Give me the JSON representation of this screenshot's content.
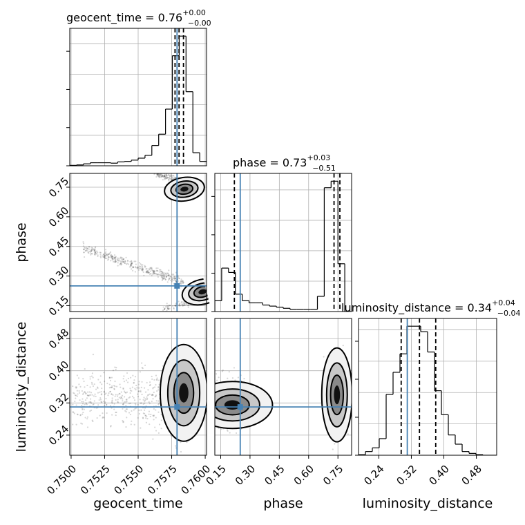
{
  "chart_data": {
    "type": "corner",
    "parameters": [
      "geocent_time",
      "phase",
      "luminosity_distance"
    ],
    "titles": [
      {
        "param": "geocent_time",
        "prefix": "geocent_time = 0.76",
        "plus": "+0.00",
        "minus": "−0.00"
      },
      {
        "param": "phase",
        "prefix": "phase = 0.73",
        "plus": "+0.03",
        "minus": "−0.51"
      },
      {
        "param": "luminosity_distance",
        "prefix": "luminosity_distance = 0.34",
        "plus": "+0.04",
        "minus": "−0.04"
      }
    ],
    "axes": {
      "geocent_time": {
        "range": [
          0.7499,
          0.7601
        ],
        "ticks": [
          0.75,
          0.7525,
          0.755,
          0.7575,
          0.76
        ],
        "tick_labels": [
          "0.7500",
          "0.7525",
          "0.7550",
          "0.7575",
          "0.7600"
        ],
        "label": "geocent_time"
      },
      "phase": {
        "range": [
          0.12,
          0.82
        ],
        "ticks": [
          0.15,
          0.3,
          0.45,
          0.6,
          0.75
        ],
        "tick_labels": [
          "0.15",
          "0.30",
          "0.45",
          "0.60",
          "0.75"
        ],
        "label": "phase"
      },
      "luminosity_distance": {
        "range": [
          0.19,
          0.53
        ],
        "ticks": [
          0.24,
          0.32,
          0.4,
          0.48
        ],
        "tick_labels": [
          "0.24",
          "0.32",
          "0.40",
          "0.48"
        ],
        "label": "luminosity_distance"
      }
    },
    "truth": {
      "geocent_time": 0.7579,
      "phase": 0.25,
      "luminosity_distance": 0.31
    },
    "quantiles": {
      "geocent_time": [
        0.75775,
        0.75805,
        0.75838
      ],
      "phase": [
        0.22,
        0.73,
        0.76
      ],
      "luminosity_distance": [
        0.295,
        0.34,
        0.38
      ]
    },
    "histograms": {
      "geocent_time": {
        "edges": [
          0.7499,
          0.75041,
          0.75092,
          0.75143,
          0.75194,
          0.75245,
          0.75296,
          0.75347,
          0.75398,
          0.75449,
          0.755,
          0.75551,
          0.75602,
          0.75653,
          0.75704,
          0.75755,
          0.75806,
          0.75857,
          0.75908,
          0.75959,
          0.7601
        ],
        "counts": [
          0.2,
          0.4,
          0.9,
          1.4,
          1.4,
          1.4,
          1.2,
          1.8,
          2.0,
          2.6,
          3.5,
          4.8,
          9.3,
          14.5,
          26.0,
          50.5,
          59.5,
          34.0,
          6.0,
          2.0
        ]
      },
      "phase": {
        "edges": [
          0.12,
          0.155,
          0.19,
          0.225,
          0.26,
          0.295,
          0.33,
          0.365,
          0.4,
          0.435,
          0.47,
          0.505,
          0.54,
          0.575,
          0.61,
          0.645,
          0.68,
          0.715,
          0.75,
          0.785,
          0.82
        ],
        "counts": [
          5,
          20,
          18,
          8,
          5,
          4,
          4,
          3,
          2.5,
          2,
          1.5,
          1,
          1,
          1,
          1,
          7,
          57,
          60,
          22,
          0
        ]
      },
      "luminosity_distance": {
        "edges": [
          0.19,
          0.207,
          0.224,
          0.241,
          0.258,
          0.275,
          0.292,
          0.309,
          0.326,
          0.343,
          0.36,
          0.377,
          0.394,
          0.411,
          0.428,
          0.445,
          0.462,
          0.479,
          0.496,
          0.513,
          0.53
        ],
        "counts": [
          0.3,
          2,
          4,
          9,
          33,
          45,
          55,
          70,
          70,
          67,
          56,
          35,
          22,
          11,
          6,
          2,
          1,
          0.3,
          0,
          0
        ]
      }
    },
    "grid": true
  }
}
